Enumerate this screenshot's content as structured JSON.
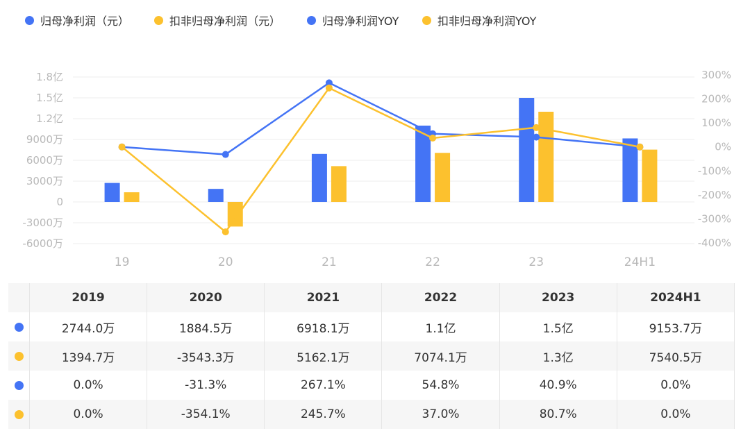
{
  "colors": {
    "blue": "#4474f5",
    "yellow": "#fcc12e",
    "grid": "#eeeeee",
    "axis": "#b8b8b8"
  },
  "legend": [
    {
      "label": "归母净利润（元）",
      "color": "#4474f5"
    },
    {
      "label": "扣非归母净利润（元）",
      "color": "#fcc12e"
    },
    {
      "label": "归母净利润YOY",
      "color": "#4474f5"
    },
    {
      "label": "扣非归母净利润YOY",
      "color": "#fcc12e"
    }
  ],
  "chart_data": {
    "type": "bar+line",
    "categories": [
      "19",
      "20",
      "21",
      "22",
      "23",
      "24H1"
    ],
    "left_axis": {
      "ticks": [
        "1.8亿",
        "1.5亿",
        "1.2亿",
        "9000万",
        "6000万",
        "3000万",
        "0",
        "-3000万",
        "-6000万"
      ],
      "range_wan": [
        -6000,
        18000
      ]
    },
    "right_axis": {
      "ticks": [
        "300%",
        "200%",
        "100%",
        "0%",
        "-100%",
        "-200%",
        "-300%",
        "-400%"
      ],
      "range_pct": [
        -400,
        300
      ]
    },
    "bar_series": [
      {
        "name": "归母净利润（元）",
        "unit": "万",
        "values": [
          2744.0,
          1884.5,
          6918.1,
          11000,
          15000,
          9153.7
        ]
      },
      {
        "name": "扣非归母净利润（元）",
        "unit": "万",
        "values": [
          1394.7,
          -3543.3,
          5162.1,
          7074.1,
          13000,
          7540.5
        ]
      }
    ],
    "line_series": [
      {
        "name": "归母净利润YOY",
        "unit": "%",
        "values": [
          0.0,
          -31.3,
          267.1,
          54.8,
          40.9,
          0.0
        ]
      },
      {
        "name": "扣非归母净利润YOY",
        "unit": "%",
        "values": [
          0.0,
          -354.1,
          245.7,
          37.0,
          80.7,
          0.0
        ]
      }
    ]
  },
  "table": {
    "headers": [
      "2019",
      "2020",
      "2021",
      "2022",
      "2023",
      "2024H1"
    ],
    "rows": [
      {
        "color": "#4474f5",
        "cells": [
          "2744.0万",
          "1884.5万",
          "6918.1万",
          "1.1亿",
          "1.5亿",
          "9153.7万"
        ]
      },
      {
        "color": "#fcc12e",
        "cells": [
          "1394.7万",
          "-3543.3万",
          "5162.1万",
          "7074.1万",
          "1.3亿",
          "7540.5万"
        ]
      },
      {
        "color": "#4474f5",
        "cells": [
          "0.0%",
          "-31.3%",
          "267.1%",
          "54.8%",
          "40.9%",
          "0.0%"
        ]
      },
      {
        "color": "#fcc12e",
        "cells": [
          "0.0%",
          "-354.1%",
          "245.7%",
          "37.0%",
          "80.7%",
          "0.0%"
        ]
      }
    ]
  }
}
